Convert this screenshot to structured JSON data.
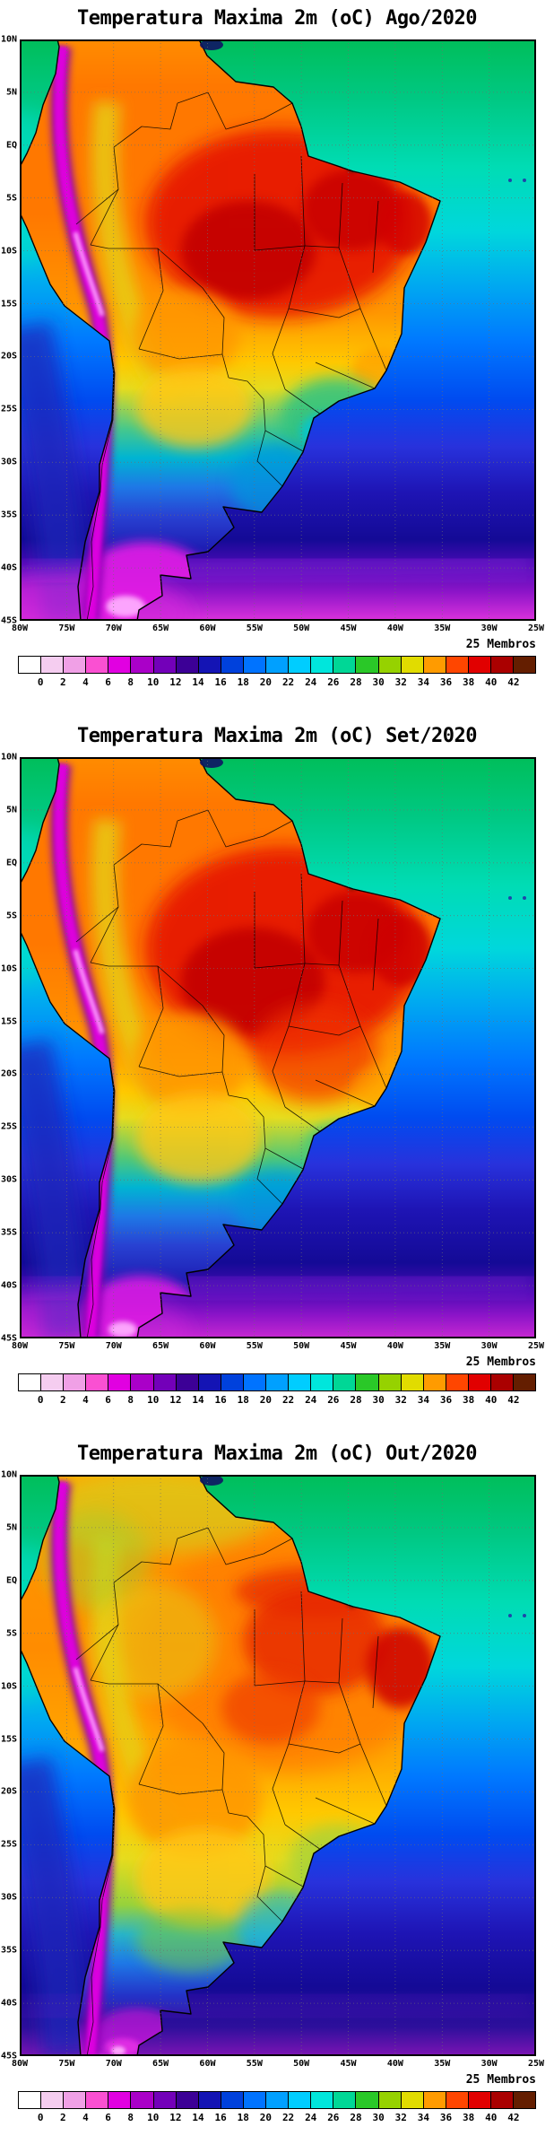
{
  "members_label": "25 Membros",
  "map_meta": {
    "variable": "Temperatura Maxima 2m",
    "units": "oC",
    "lon_range": [
      "80W",
      "25W"
    ],
    "lat_range": [
      "10N",
      "45S"
    ],
    "levels_min": 0,
    "levels_max": 42,
    "levels_step": 2,
    "ensemble_label": "25 Membros",
    "months": [
      "Ago/2020",
      "Set/2020",
      "Out/2020"
    ]
  },
  "axis": {
    "lat_labels": [
      "10N",
      "5N",
      "EQ",
      "5S",
      "10S",
      "15S",
      "20S",
      "25S",
      "30S",
      "35S",
      "40S",
      "45S"
    ],
    "lon_labels": [
      "80W",
      "75W",
      "70W",
      "65W",
      "60W",
      "55W",
      "50W",
      "45W",
      "40W",
      "35W",
      "30W",
      "25W"
    ]
  },
  "colorbar": {
    "tick_labels": [
      "0",
      "2",
      "4",
      "6",
      "8",
      "10",
      "12",
      "14",
      "16",
      "18",
      "20",
      "22",
      "24",
      "26",
      "28",
      "30",
      "32",
      "34",
      "36",
      "38",
      "40",
      "42"
    ],
    "palette": [
      "#ffffff",
      "#f5cdf0",
      "#f0a0e6",
      "#fa50d2",
      "#e100e1",
      "#aa00c8",
      "#7300b9",
      "#3c0096",
      "#1414b4",
      "#0041dc",
      "#0073ff",
      "#00a0ff",
      "#00cdff",
      "#00e6dc",
      "#00d796",
      "#2ac828",
      "#96d200",
      "#e1dc00",
      "#ff9b00",
      "#ff4600",
      "#e10000",
      "#aa0000",
      "#641e00"
    ]
  },
  "panels": [
    {
      "id": "ago",
      "title": "Temperatura Maxima 2m (oC) Ago/2020",
      "month": "Ago/2020"
    },
    {
      "id": "set",
      "title": "Temperatura Maxima 2m (oC) Set/2020",
      "month": "Set/2020"
    },
    {
      "id": "out",
      "title": "Temperatura Maxima 2m (oC) Out/2020",
      "month": "Out/2020"
    }
  ]
}
